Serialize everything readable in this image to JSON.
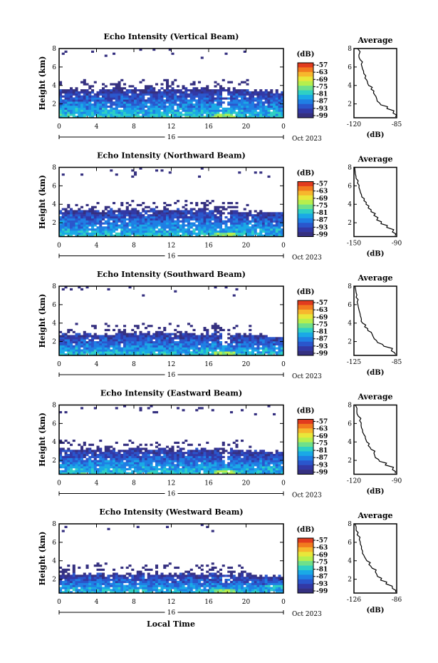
{
  "figure": {
    "date_label": "Oct 2023",
    "day_label": "16",
    "xlabel": "Local Time",
    "ylabel": "Height (km)",
    "colorbar_unit": "(dB)",
    "colorbar_ticks": [
      "-57",
      "-63",
      "-69",
      "-75",
      "-81",
      "-87",
      "-93",
      "-99"
    ],
    "colorbar_colors": [
      "#e23b1e",
      "#f27a1f",
      "#f7b72d",
      "#e9e73a",
      "#b6ef4d",
      "#6fe08a",
      "#2fd0c4",
      "#1aa9e6",
      "#1f7fe4",
      "#2a56cc",
      "#3239a6",
      "#353080"
    ],
    "profile_title": "Average",
    "profile_xlabel": "(dB)",
    "x_ticks": [
      "0",
      "4",
      "8",
      "12",
      "16",
      "20",
      "0"
    ],
    "y_ticks": [
      "2",
      "4",
      "6",
      "8"
    ]
  },
  "panels": [
    {
      "title": "Echo Intensity (Vertical Beam)",
      "profile_ticks": [
        "-120",
        "-85"
      ],
      "cloud_top": 3.6,
      "high_cloud": 0.25
    },
    {
      "title": "Echo Intensity (Northward Beam)",
      "profile_ticks": [
        "-150",
        "-90"
      ],
      "cloud_top": 3.4,
      "high_cloud": 0.35
    },
    {
      "title": "Echo Intensity (Southward Beam)",
      "profile_ticks": [
        "-125",
        "-85"
      ],
      "cloud_top": 2.9,
      "high_cloud": 0.3
    },
    {
      "title": "Echo Intensity (Eastward Beam)",
      "profile_ticks": [
        "-120",
        "-90"
      ],
      "cloud_top": 3.2,
      "high_cloud": 0.3
    },
    {
      "title": "Echo Intensity (Westward Beam)",
      "profile_ticks": [
        "-126",
        "-86"
      ],
      "cloud_top": 2.6,
      "high_cloud": 0.25
    }
  ],
  "chart_data": [
    {
      "type": "heatmap",
      "title": "Echo Intensity (Vertical Beam)",
      "xlabel": "Oct 2023",
      "ylabel": "Height (km)",
      "xlim": [
        0,
        24
      ],
      "ylim": [
        0.5,
        8
      ],
      "colorbar_range_db": [
        -99,
        -57
      ]
    },
    {
      "type": "line",
      "title": "Average",
      "xlabel": "(dB)",
      "xlim": [
        -120,
        -85
      ],
      "ylim": [
        0.5,
        8
      ],
      "x": [
        -86,
        -88,
        -93,
        -98,
        -101,
        -102,
        -104,
        -106,
        -108,
        -109,
        -111,
        -112,
        -113,
        -114,
        -115,
        -116,
        -117
      ],
      "y": [
        0.6,
        1.0,
        1.5,
        1.9,
        2.3,
        2.8,
        3.2,
        3.6,
        4.0,
        4.4,
        4.8,
        5.3,
        5.8,
        6.3,
        6.8,
        7.3,
        8.0
      ]
    },
    {
      "type": "heatmap",
      "title": "Echo Intensity (Northward Beam)",
      "xlabel": "Oct 2023",
      "ylabel": "Height (km)",
      "xlim": [
        0,
        24
      ],
      "ylim": [
        0.5,
        8
      ],
      "colorbar_range_db": [
        -99,
        -57
      ]
    },
    {
      "type": "line",
      "title": "Average",
      "xlabel": "(dB)",
      "xlim": [
        -150,
        -90
      ],
      "ylim": [
        0.5,
        8
      ],
      "x": [
        -92,
        -96,
        -104,
        -112,
        -118,
        -122,
        -126,
        -130,
        -133,
        -136,
        -139,
        -141,
        -143,
        -145,
        -147,
        -148,
        -149
      ],
      "y": [
        0.6,
        1.0,
        1.5,
        1.9,
        2.3,
        2.8,
        3.2,
        3.6,
        4.0,
        4.4,
        4.8,
        5.3,
        5.8,
        6.3,
        6.8,
        7.3,
        8.0
      ]
    },
    {
      "type": "heatmap",
      "title": "Echo Intensity (Southward Beam)",
      "xlabel": "Oct 2023",
      "ylabel": "Height (km)",
      "xlim": [
        0,
        24
      ],
      "ylim": [
        0.5,
        8
      ],
      "colorbar_range_db": [
        -99,
        -57
      ]
    },
    {
      "type": "line",
      "title": "Average",
      "xlabel": "(dB)",
      "xlim": [
        -125,
        -85
      ],
      "ylim": [
        0.5,
        8
      ],
      "x": [
        -86,
        -90,
        -97,
        -103,
        -106,
        -108,
        -112,
        -115,
        -117,
        -118,
        -119,
        -120,
        -121,
        -122,
        -123,
        -123,
        -124
      ],
      "y": [
        0.6,
        1.0,
        1.5,
        1.9,
        2.3,
        2.8,
        3.2,
        3.6,
        4.0,
        4.4,
        4.8,
        5.3,
        5.8,
        6.3,
        6.8,
        7.3,
        8.0
      ]
    },
    {
      "type": "heatmap",
      "title": "Echo Intensity (Eastward Beam)",
      "xlabel": "Oct 2023",
      "ylabel": "Height (km)",
      "xlim": [
        0,
        24
      ],
      "ylim": [
        0.5,
        8
      ],
      "colorbar_range_db": [
        -99,
        -57
      ]
    },
    {
      "type": "line",
      "title": "Average",
      "xlabel": "(dB)",
      "xlim": [
        -120,
        -90
      ],
      "ylim": [
        0.5,
        8
      ],
      "x": [
        -91,
        -93,
        -98,
        -102,
        -105,
        -106,
        -108,
        -110,
        -111,
        -112,
        -113,
        -114,
        -115,
        -116,
        -117,
        -118,
        -119
      ],
      "y": [
        0.6,
        1.0,
        1.5,
        1.9,
        2.3,
        2.8,
        3.2,
        3.6,
        4.0,
        4.4,
        4.8,
        5.3,
        5.8,
        6.3,
        6.8,
        7.3,
        8.0
      ]
    },
    {
      "type": "heatmap",
      "title": "Echo Intensity (Westward Beam)",
      "xlabel": "Oct 2023",
      "ylabel": "Height (km)",
      "xlim": [
        0,
        24
      ],
      "ylim": [
        0.5,
        8
      ],
      "colorbar_range_db": [
        -99,
        -57
      ]
    },
    {
      "type": "line",
      "title": "Average",
      "xlabel": "(dB)",
      "xlim": [
        -126,
        -86
      ],
      "ylim": [
        0.5,
        8
      ],
      "x": [
        -87,
        -90,
        -96,
        -101,
        -104,
        -106,
        -109,
        -112,
        -114,
        -116,
        -118,
        -119,
        -120,
        -121,
        -123,
        -124,
        -125
      ],
      "y": [
        0.6,
        1.0,
        1.5,
        1.9,
        2.3,
        2.8,
        3.2,
        3.6,
        4.0,
        4.4,
        4.8,
        5.3,
        5.8,
        6.3,
        6.8,
        7.3,
        8.0
      ]
    }
  ]
}
